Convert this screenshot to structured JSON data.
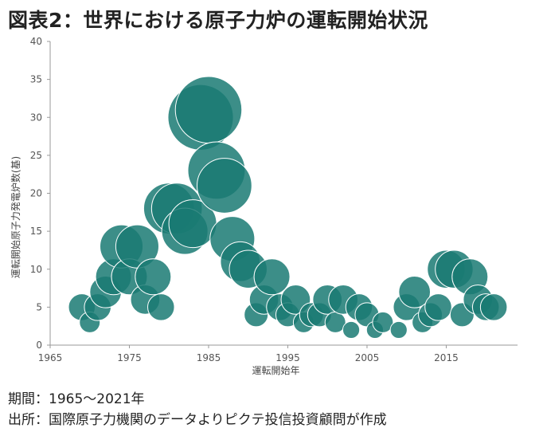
{
  "title": "図表2：世界における原子力炉の運転開始状況",
  "notes": {
    "period": "期間：1965～2021年",
    "source": "出所：国際原子力機関のデータよりピクテ投信投資顧問が作成"
  },
  "colors": {
    "bubble": "#1a7a73",
    "bubble_opacity": 0.85,
    "axis": "#999999"
  },
  "chart_data": {
    "type": "scatter",
    "subtype": "bubble",
    "title": "",
    "xlabel": "運転開始年",
    "ylabel": "運転開始原子力発電炉数(基)",
    "xlim": [
      1965,
      2024
    ],
    "ylim": [
      0,
      40
    ],
    "xticks": [
      1965,
      1975,
      1985,
      1995,
      2005,
      2015
    ],
    "yticks": [
      0,
      5,
      10,
      15,
      20,
      25,
      30,
      35,
      40
    ],
    "grid": false,
    "bubble_size_encodes": "y",
    "points": [
      {
        "x": 1969,
        "y": 5
      },
      {
        "x": 1970,
        "y": 3
      },
      {
        "x": 1971,
        "y": 5
      },
      {
        "x": 1972,
        "y": 7
      },
      {
        "x": 1973,
        "y": 9
      },
      {
        "x": 1974,
        "y": 13
      },
      {
        "x": 1975,
        "y": 9
      },
      {
        "x": 1976,
        "y": 13
      },
      {
        "x": 1977,
        "y": 6
      },
      {
        "x": 1978,
        "y": 9
      },
      {
        "x": 1979,
        "y": 5
      },
      {
        "x": 1980,
        "y": 18
      },
      {
        "x": 1981,
        "y": 18
      },
      {
        "x": 1982,
        "y": 15
      },
      {
        "x": 1983,
        "y": 16
      },
      {
        "x": 1984,
        "y": 30
      },
      {
        "x": 1985,
        "y": 31
      },
      {
        "x": 1986,
        "y": 23
      },
      {
        "x": 1987,
        "y": 21
      },
      {
        "x": 1988,
        "y": 14
      },
      {
        "x": 1989,
        "y": 11
      },
      {
        "x": 1990,
        "y": 10
      },
      {
        "x": 1991,
        "y": 4
      },
      {
        "x": 1992,
        "y": 6
      },
      {
        "x": 1993,
        "y": 9
      },
      {
        "x": 1994,
        "y": 5
      },
      {
        "x": 1995,
        "y": 4
      },
      {
        "x": 1996,
        "y": 6
      },
      {
        "x": 1997,
        "y": 3
      },
      {
        "x": 1998,
        "y": 4
      },
      {
        "x": 1999,
        "y": 4
      },
      {
        "x": 2000,
        "y": 6
      },
      {
        "x": 2001,
        "y": 3
      },
      {
        "x": 2002,
        "y": 6
      },
      {
        "x": 2003,
        "y": 2
      },
      {
        "x": 2004,
        "y": 5
      },
      {
        "x": 2005,
        "y": 4
      },
      {
        "x": 2006,
        "y": 2
      },
      {
        "x": 2007,
        "y": 3
      },
      {
        "x": 2009,
        "y": 2
      },
      {
        "x": 2010,
        "y": 5
      },
      {
        "x": 2011,
        "y": 7
      },
      {
        "x": 2012,
        "y": 3
      },
      {
        "x": 2013,
        "y": 4
      },
      {
        "x": 2014,
        "y": 5
      },
      {
        "x": 2015,
        "y": 10
      },
      {
        "x": 2016,
        "y": 10
      },
      {
        "x": 2017,
        "y": 4
      },
      {
        "x": 2018,
        "y": 9
      },
      {
        "x": 2019,
        "y": 6
      },
      {
        "x": 2020,
        "y": 5
      },
      {
        "x": 2021,
        "y": 5
      }
    ]
  }
}
